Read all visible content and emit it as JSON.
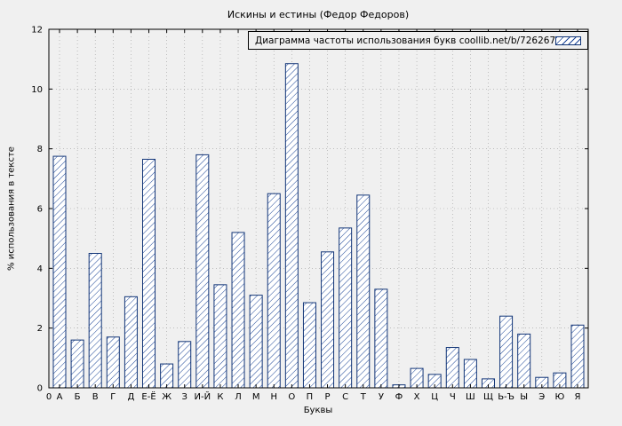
{
  "chart_data": {
    "type": "bar",
    "title": "Искины и естины (Федор  Федоров)",
    "legend": "Диаграмма частоты использования букв coollib.net/b/726267",
    "xlabel": "Буквы",
    "ylabel": "% использования в тексте",
    "origin_label": "0",
    "categories": [
      "А",
      "Б",
      "В",
      "Г",
      "Д",
      "Е-Ё",
      "Ж",
      "З",
      "И-Й",
      "К",
      "Л",
      "М",
      "Н",
      "О",
      "П",
      "Р",
      "С",
      "Т",
      "У",
      "Ф",
      "Х",
      "Ц",
      "Ч",
      "Ш",
      "Щ",
      "Ь-Ъ",
      "Ы",
      "Э",
      "Ю",
      "Я"
    ],
    "values": [
      7.75,
      1.6,
      4.5,
      1.7,
      3.05,
      7.65,
      0.8,
      1.55,
      7.8,
      3.45,
      5.2,
      3.1,
      6.5,
      10.85,
      2.85,
      4.55,
      5.35,
      6.45,
      3.3,
      0.1,
      0.65,
      0.45,
      1.35,
      0.95,
      0.3,
      2.4,
      1.8,
      0.35,
      0.5,
      2.1
    ],
    "yticks": [
      0,
      2,
      4,
      6,
      8,
      10,
      12
    ],
    "ylim": [
      0,
      12
    ],
    "grid": true,
    "legend_position": "top-right",
    "colors": {
      "background": "#f0f0f0",
      "bar_fill": "#ffffff",
      "bar_hatch": "#1a4496",
      "bar_outline": "#123577",
      "grid": "#9c9c9c",
      "axis": "#000000",
      "text": "#000000"
    }
  }
}
